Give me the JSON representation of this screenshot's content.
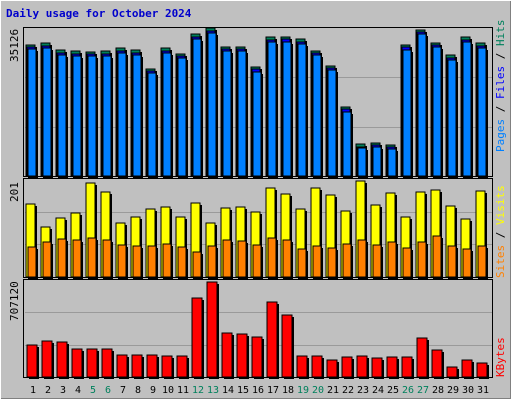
{
  "title": "Daily usage for October 2024",
  "colors": {
    "pages": "#0080ff",
    "files": "#0000ff",
    "hits": "#00805c",
    "visits": "#ffff00",
    "sites": "#ff8000",
    "kbytes": "#ff0000",
    "weekend": "#00805c",
    "weekday": "#000000"
  },
  "chart_data": [
    {
      "type": "bar",
      "title": "",
      "ylabel": "Pages / Files / Hits",
      "ymax_label": "35126",
      "ylim": [
        0,
        35126
      ],
      "grid": true,
      "categories": [
        "1",
        "2",
        "3",
        "4",
        "5",
        "6",
        "7",
        "8",
        "9",
        "10",
        "11",
        "12",
        "13",
        "14",
        "15",
        "16",
        "17",
        "18",
        "19",
        "20",
        "21",
        "22",
        "23",
        "24",
        "25",
        "26",
        "27",
        "28",
        "29",
        "30",
        "31"
      ],
      "weekend_days": [
        "5",
        "6",
        "12",
        "13",
        "19",
        "20",
        "26",
        "27"
      ],
      "series": [
        {
          "name": "Hits",
          "values": [
            31200,
            31500,
            29800,
            29600,
            29500,
            29600,
            30300,
            29800,
            25500,
            30300,
            29000,
            33700,
            35126,
            30700,
            30700,
            25900,
            32900,
            33000,
            32400,
            29700,
            26200,
            16400,
            7500,
            7800,
            7400,
            31100,
            34700,
            31600,
            28700,
            32900,
            31500
          ]
        },
        {
          "name": "Files",
          "values": [
            30600,
            30800,
            29200,
            29000,
            28900,
            29000,
            29700,
            29200,
            24900,
            29700,
            28400,
            33100,
            34500,
            30100,
            30100,
            25300,
            32300,
            32400,
            31800,
            29100,
            25600,
            15800,
            7000,
            7300,
            6900,
            30500,
            34100,
            31000,
            28100,
            32300,
            30900
          ]
        },
        {
          "name": "Pages",
          "values": [
            30100,
            30300,
            28700,
            28500,
            28400,
            28500,
            29200,
            28700,
            24400,
            29200,
            27900,
            32600,
            34000,
            29600,
            29600,
            24800,
            31800,
            31900,
            31300,
            28600,
            25100,
            15300,
            6600,
            6900,
            6500,
            30000,
            33600,
            30500,
            27600,
            31800,
            30400
          ]
        }
      ]
    },
    {
      "type": "bar",
      "title": "",
      "ylabel": "Sites / Visits",
      "ymax_label": "201",
      "ylim": [
        0,
        201
      ],
      "grid": true,
      "categories": [
        "1",
        "2",
        "3",
        "4",
        "5",
        "6",
        "7",
        "8",
        "9",
        "10",
        "11",
        "12",
        "13",
        "14",
        "15",
        "16",
        "17",
        "18",
        "19",
        "20",
        "21",
        "22",
        "23",
        "24",
        "25",
        "26",
        "27",
        "28",
        "29",
        "30",
        "31"
      ],
      "series": [
        {
          "name": "Visits",
          "values": [
            152,
            104,
            123,
            133,
            197,
            178,
            113,
            126,
            142,
            147,
            125,
            154,
            114,
            144,
            146,
            137,
            186,
            173,
            142,
            187,
            172,
            138,
            201,
            151,
            175,
            125,
            177,
            183,
            148,
            122,
            180
          ]
        },
        {
          "name": "Sites",
          "values": [
            62,
            73,
            80,
            77,
            82,
            78,
            68,
            64,
            64,
            69,
            63,
            53,
            64,
            77,
            76,
            67,
            82,
            78,
            59,
            64,
            61,
            70,
            77,
            67,
            73,
            60,
            73,
            86,
            64,
            59,
            64
          ]
        }
      ]
    },
    {
      "type": "bar",
      "title": "",
      "ylabel": "KBytes",
      "ymax_label": "707120",
      "ylim": [
        0,
        707120
      ],
      "grid": true,
      "categories": [
        "1",
        "2",
        "3",
        "4",
        "5",
        "6",
        "7",
        "8",
        "9",
        "10",
        "11",
        "12",
        "13",
        "14",
        "15",
        "16",
        "17",
        "18",
        "19",
        "20",
        "21",
        "22",
        "23",
        "24",
        "25",
        "26",
        "27",
        "28",
        "29",
        "30",
        "31"
      ],
      "series": [
        {
          "name": "KBytes",
          "values": [
            241000,
            270000,
            262000,
            212000,
            212000,
            212000,
            162000,
            162000,
            167000,
            155000,
            159000,
            590000,
            707120,
            327000,
            321000,
            299000,
            560000,
            462000,
            159000,
            159000,
            124000,
            149000,
            159000,
            142000,
            149000,
            146000,
            289000,
            201000,
            74000,
            124000,
            106000
          ]
        }
      ]
    }
  ]
}
